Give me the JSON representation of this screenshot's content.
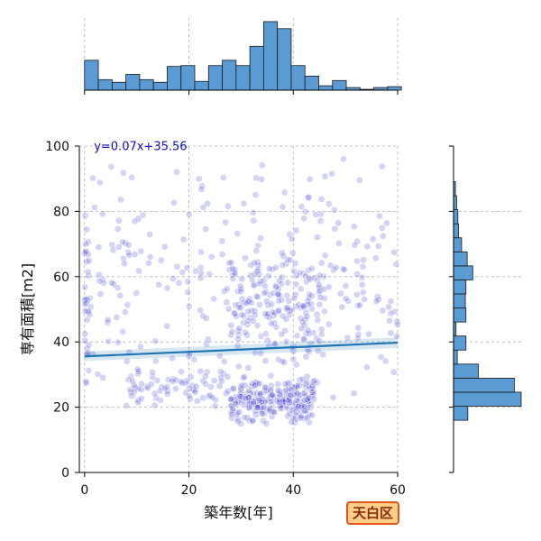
{
  "chart_data": {
    "type": "scatter",
    "title": "",
    "xlabel": "築年数[年]",
    "ylabel": "専有面積[m2]",
    "xlim": [
      -1,
      60
    ],
    "ylim": [
      0,
      100
    ],
    "xticks": [
      0,
      20,
      40,
      60
    ],
    "yticks": [
      0,
      20,
      40,
      60,
      80,
      100
    ],
    "grid": true,
    "regression": {
      "label": "y=0.07x+35.56",
      "slope": 0.07,
      "intercept": 35.56
    },
    "top_histogram": {
      "bin_start": 0,
      "bin_width": 2.64,
      "relative_counts": [
        34,
        12,
        9,
        18,
        12,
        9,
        27,
        28,
        10,
        28,
        34,
        28,
        50,
        78,
        70,
        28,
        16,
        5,
        11,
        3,
        1,
        3,
        4
      ]
    },
    "right_histogram": {
      "bin_start": 16,
      "bin_width": 4.3,
      "relative_counts": [
        23,
        109,
        98,
        40,
        6,
        20,
        4,
        20,
        19,
        20,
        31,
        22,
        13,
        8,
        7,
        5,
        3
      ]
    },
    "point_clusters": [
      {
        "x_range": [
          28,
          44
        ],
        "y_range": [
          14,
          30
        ],
        "count": 260
      },
      {
        "x_range": [
          8,
          28
        ],
        "y_range": [
          20,
          32
        ],
        "count": 70
      },
      {
        "x_range": [
          28,
          46
        ],
        "y_range": [
          30,
          70
        ],
        "count": 150
      },
      {
        "x_range": [
          0,
          60
        ],
        "y_range": [
          20,
          100
        ],
        "count": 280
      },
      {
        "x_range": [
          0,
          1
        ],
        "y_range": [
          20,
          80
        ],
        "count": 30
      },
      {
        "x_range": [
          58,
          60
        ],
        "y_range": [
          40,
          52
        ],
        "count": 6
      }
    ],
    "colors": {
      "scatter": "#3a3ad0",
      "regression_line": "#1f77b4",
      "histogram_fill": "#5a9bd4",
      "equation_text": "#1010c0",
      "grid": "#b0b0b0"
    }
  },
  "region_badge": {
    "label": "天白区",
    "background": "#ffcf8a"
  }
}
